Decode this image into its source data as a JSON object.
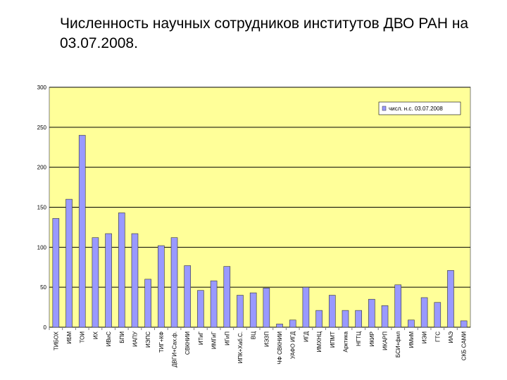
{
  "chart_data": {
    "type": "bar",
    "title": "Численность научных сотрудников институтов ДВО РАН на 03.07.2008.",
    "categories": [
      "ТИБОХ",
      "ИБМ",
      "ТОИ",
      "ИХ",
      "ИВиС",
      "БПИ",
      "ИАПУ",
      "ИЭПС",
      "ТИГ+КФ",
      "ДВГИ+Сах.ф.",
      "СВКНИИ",
      "ИТиГ",
      "ИМГиГ",
      "ИГиП",
      "ИПК+Хаб.С.",
      "ВЦ",
      "ИЭЗП",
      "ЧФ СВКНИИ",
      "УАФО ИГД",
      "ИГД",
      "ИМХНЦ",
      "ИПМТ",
      "Арктика",
      "НГТЦ",
      "ИКИР",
      "ИКАРП",
      "БСИ+фил",
      "ИМиМ",
      "ИЭИ",
      "ГТС",
      "ИАЭ",
      "СКБ САМИ"
    ],
    "series": [
      {
        "name": "числ. н.с. 03.07.2008",
        "color": "#9999ff",
        "values": [
          136,
          160,
          240,
          112,
          117,
          143,
          117,
          60,
          102,
          112,
          77,
          46,
          58,
          76,
          40,
          43,
          49,
          4,
          9,
          50,
          21,
          40,
          21,
          21,
          35,
          27,
          53,
          9,
          37,
          31,
          71,
          8
        ]
      }
    ],
    "ylim": [
      0,
      300
    ],
    "yticks": [
      0,
      50,
      100,
      150,
      200,
      250,
      300
    ],
    "grid": true,
    "legend": "top-right"
  }
}
